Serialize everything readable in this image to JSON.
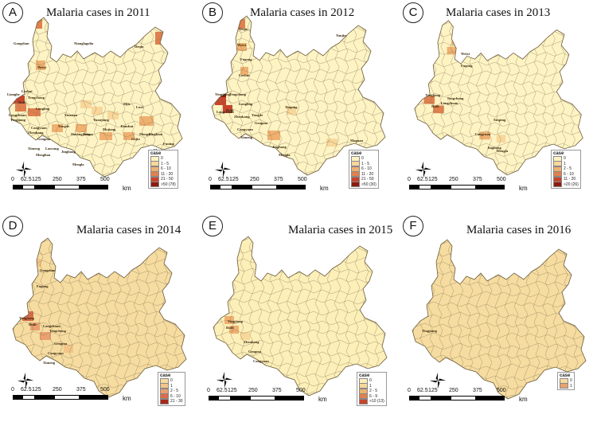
{
  "panels": [
    {
      "letter": "A",
      "title": "Malaria cases in 2011",
      "legend_title": "case",
      "legend": [
        "0",
        "1 - 5",
        "6 - 10",
        "11 - 20",
        "21 - 50",
        ">50 (78)"
      ],
      "scale": [
        "0",
        "62.5",
        "125",
        "250",
        "375",
        "500"
      ],
      "km": "km"
    },
    {
      "letter": "B",
      "title": "Malaria cases in 2012",
      "legend_title": "case",
      "legend": [
        "0",
        "1 - 5",
        "6 - 10",
        "11 - 20",
        "21 - 50",
        ">50 (30)"
      ],
      "scale": [
        "0",
        "62.5",
        "125",
        "250",
        "375",
        "500"
      ],
      "km": "km"
    },
    {
      "letter": "C",
      "title": "Malaria cases in 2013",
      "legend_title": "case",
      "legend": [
        "0",
        "1",
        "2 - 5",
        "6 - 10",
        "11 - 20",
        ">20 (26)"
      ],
      "scale": [
        "0",
        "62.5",
        "125",
        "250",
        "375",
        "500"
      ],
      "km": "km"
    },
    {
      "letter": "D",
      "title": "Malaria cases in 2014",
      "legend_title": "case",
      "legend": [
        "0",
        "1",
        "2 - 5",
        "6 - 10",
        "21 - 30"
      ],
      "scale": [
        "0",
        "62.5",
        "125",
        "250",
        "375",
        "500"
      ],
      "km": "km"
    },
    {
      "letter": "E",
      "title": "Malaria cases in 2015",
      "legend_title": "case",
      "legend": [
        "0",
        "1",
        "2 - 5",
        "6 - 9",
        ">10 (13)"
      ],
      "scale": [
        "0",
        "62.5",
        "125",
        "250",
        "375",
        "500"
      ],
      "km": "km"
    },
    {
      "letter": "F",
      "title": "Malaria cases in 2016",
      "legend_title": "case",
      "legend": [
        "0",
        "1"
      ],
      "scale": [
        "0",
        "62.5",
        "125",
        "250",
        "375",
        "500"
      ],
      "km": "km"
    }
  ],
  "place_labels": {
    "A": [
      "Gongshan",
      "Nianglagolia",
      "Deqin",
      "Weixi",
      "Lushui",
      "Lianghe",
      "Yingjiang",
      "Longchuan",
      "Ruili",
      "Tengchong",
      "Longling",
      "Zhenkang",
      "Gengma",
      "Cangyuan",
      "Lancang",
      "Menglian",
      "Ximeng",
      "Jinghong",
      "Mengla",
      "Simao",
      "Yuanjiang",
      "Mojiang",
      "Jianshui",
      "Gejiu",
      "Mengzi",
      "Pingbian",
      "Maguan",
      "Funing",
      "Mile",
      "Luxi",
      "Shuangjiang",
      "Yongde",
      "Yunxian"
    ],
    "B": [
      "Deqin",
      "Weixi",
      "Fugong",
      "Lushui",
      "Tengchong",
      "Yingjiang",
      "Ruili",
      "Longchuan",
      "Longling",
      "Zhenkang",
      "Cangyuan",
      "Ximeng",
      "Jinghong",
      "Mengla",
      "Xinping",
      "Maguan",
      "Yanjin",
      "Yongde",
      "Gengma"
    ],
    "C": [
      "Weixi",
      "Fugong",
      "Yingjiang",
      "Ruili",
      "Longchuan",
      "Tengchong",
      "Cangyuan",
      "Jinghong",
      "Mengla",
      "Xinping"
    ],
    "D": [
      "Gongshan",
      "Fugong",
      "Yingjiang",
      "Ruili",
      "Longchuan",
      "Tengchong",
      "Gengma",
      "Cangyuan",
      "Ximeng"
    ],
    "E": [
      "Yingjiang",
      "Ruili",
      "Zhenkang",
      "Gengma",
      "Cangyuan"
    ],
    "F": [
      "Yingjiang"
    ]
  },
  "colors": {
    "scale_A": [
      "#fdf3c3",
      "#f8d79a",
      "#f0b070",
      "#e0804e",
      "#c8432c",
      "#8c1a0e"
    ],
    "scale_B": [
      "#fdf3c3",
      "#f8d79a",
      "#f0b070",
      "#e0804e",
      "#c8432c",
      "#8c1a0e"
    ],
    "scale_C": [
      "#fdf3c3",
      "#f8d79a",
      "#f0b070",
      "#e0804e",
      "#c8432c",
      "#8c1a0e"
    ],
    "scale_D": [
      "#f6dca0",
      "#f3c588",
      "#eba070",
      "#dc6b48",
      "#a8281a"
    ],
    "scale_E": [
      "#fcefb8",
      "#f8d79a",
      "#f0b070",
      "#e0804e",
      "#c8432c"
    ],
    "scale_F": [
      "#f6dca0",
      "#e8a270"
    ],
    "boundary": "#8a7a5a"
  },
  "icons": {
    "compass": "north-arrow-compass-icon"
  }
}
